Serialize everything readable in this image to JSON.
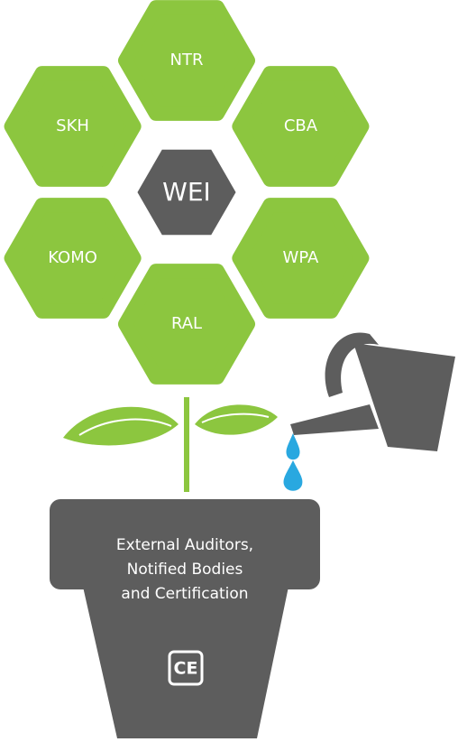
{
  "center": "WEI",
  "petals": [
    "NTR",
    "CBA",
    "WPA",
    "RAL",
    "KOMO",
    "SKH"
  ],
  "pot": {
    "lines": [
      "External Auditors,",
      "Notified Bodies",
      "and Certification"
    ],
    "mark": "CE"
  }
}
